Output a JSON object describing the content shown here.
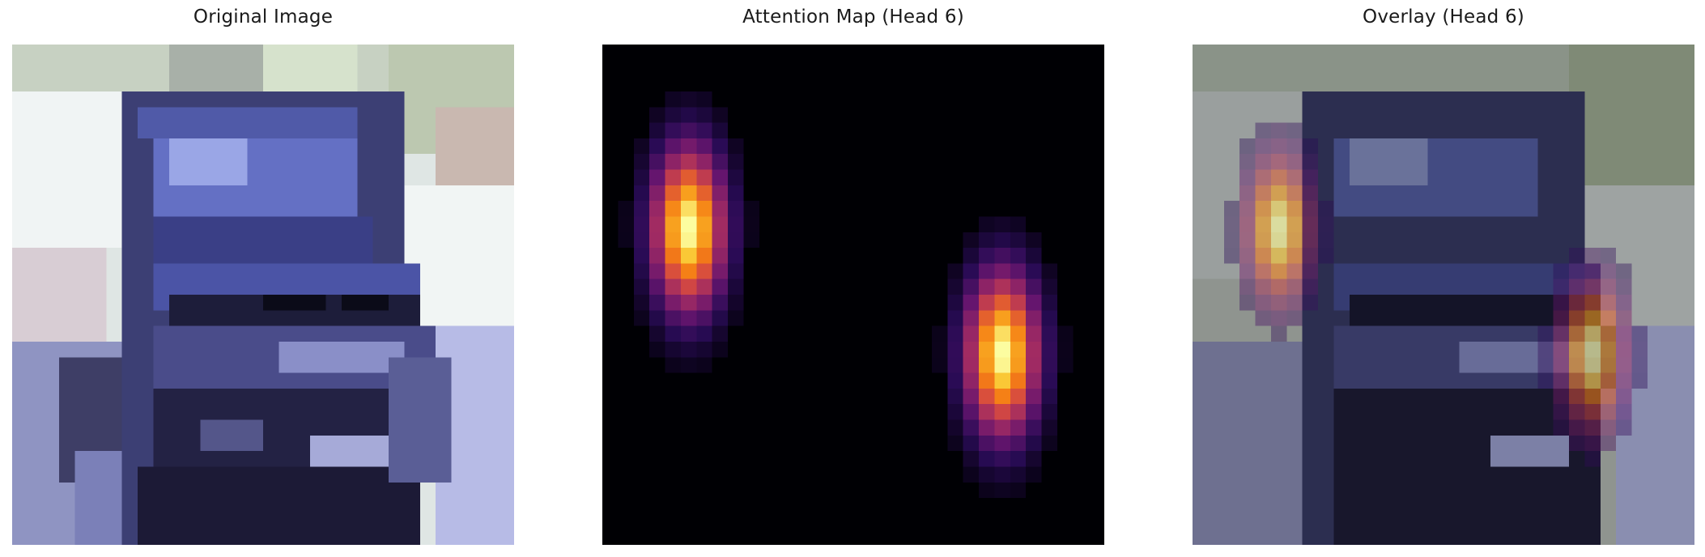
{
  "figure": {
    "panels": [
      {
        "title": "Original Image",
        "content": "pixelated-car-photo"
      },
      {
        "title": "Attention Map (Head 6)",
        "content": "inferno-heatmap"
      },
      {
        "title": "Overlay (Head 6)",
        "content": "heatmap-over-photo"
      }
    ]
  },
  "colors": {
    "background": "#ffffff",
    "car_body": "#5a62b8",
    "sky_light": "#e8efe8",
    "attention_low": "#000004",
    "attention_high": "#fcffa4"
  }
}
